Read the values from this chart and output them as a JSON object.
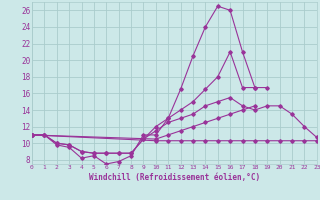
{
  "xlabel": "Windchill (Refroidissement éolien,°C)",
  "background_color": "#cce8e8",
  "grid_color": "#aacccc",
  "line_color": "#993399",
  "xlim": [
    0,
    23
  ],
  "ylim": [
    7.5,
    27.0
  ],
  "xticks": [
    0,
    1,
    2,
    3,
    4,
    5,
    6,
    7,
    8,
    9,
    10,
    11,
    12,
    13,
    14,
    15,
    16,
    17,
    18,
    19,
    20,
    21,
    22,
    23
  ],
  "yticks": [
    8,
    10,
    12,
    14,
    16,
    18,
    20,
    22,
    24,
    26
  ],
  "series": [
    {
      "x": [
        0,
        1,
        2,
        3,
        4,
        5,
        6,
        7,
        8,
        9,
        10,
        11,
        12,
        13,
        14,
        15,
        16,
        17,
        18,
        19
      ],
      "y": [
        11.0,
        11.0,
        9.8,
        9.5,
        8.2,
        8.5,
        7.5,
        7.8,
        8.5,
        11.0,
        11.0,
        13.0,
        16.5,
        20.5,
        24.0,
        26.5,
        26.0,
        21.0,
        16.7,
        16.7
      ]
    },
    {
      "x": [
        0,
        1,
        2,
        3,
        4,
        5,
        6,
        7,
        8,
        9,
        10,
        11,
        12,
        13,
        14,
        15,
        16,
        17,
        18,
        19,
        20,
        21,
        22,
        23
      ],
      "y": [
        11.0,
        11.0,
        10.0,
        9.8,
        9.0,
        8.8,
        8.8,
        8.8,
        8.8,
        10.5,
        11.5,
        12.5,
        13.0,
        13.5,
        14.5,
        15.0,
        15.5,
        14.5,
        14.0,
        14.5,
        14.5,
        13.5,
        12.0,
        10.7
      ]
    },
    {
      "x": [
        0,
        1,
        2,
        3,
        4,
        5,
        6,
        7,
        8,
        9,
        10,
        11,
        12,
        13,
        14,
        15,
        16,
        17,
        18
      ],
      "y": [
        11.0,
        11.0,
        10.0,
        9.8,
        9.0,
        8.8,
        8.8,
        8.8,
        8.8,
        10.5,
        12.0,
        13.0,
        14.0,
        15.0,
        16.5,
        18.0,
        21.0,
        16.7,
        16.7
      ]
    },
    {
      "x": [
        0,
        10,
        11,
        12,
        13,
        14,
        15,
        16,
        17,
        18
      ],
      "y": [
        11.0,
        10.5,
        11.0,
        11.5,
        12.0,
        12.5,
        13.0,
        13.5,
        14.0,
        14.5
      ]
    },
    {
      "x": [
        0,
        10,
        11,
        12,
        13,
        14,
        15,
        16,
        17,
        18,
        19,
        20,
        21,
        22,
        23
      ],
      "y": [
        11.0,
        10.3,
        10.3,
        10.3,
        10.3,
        10.3,
        10.3,
        10.3,
        10.3,
        10.3,
        10.3,
        10.3,
        10.3,
        10.3,
        10.3
      ]
    }
  ]
}
